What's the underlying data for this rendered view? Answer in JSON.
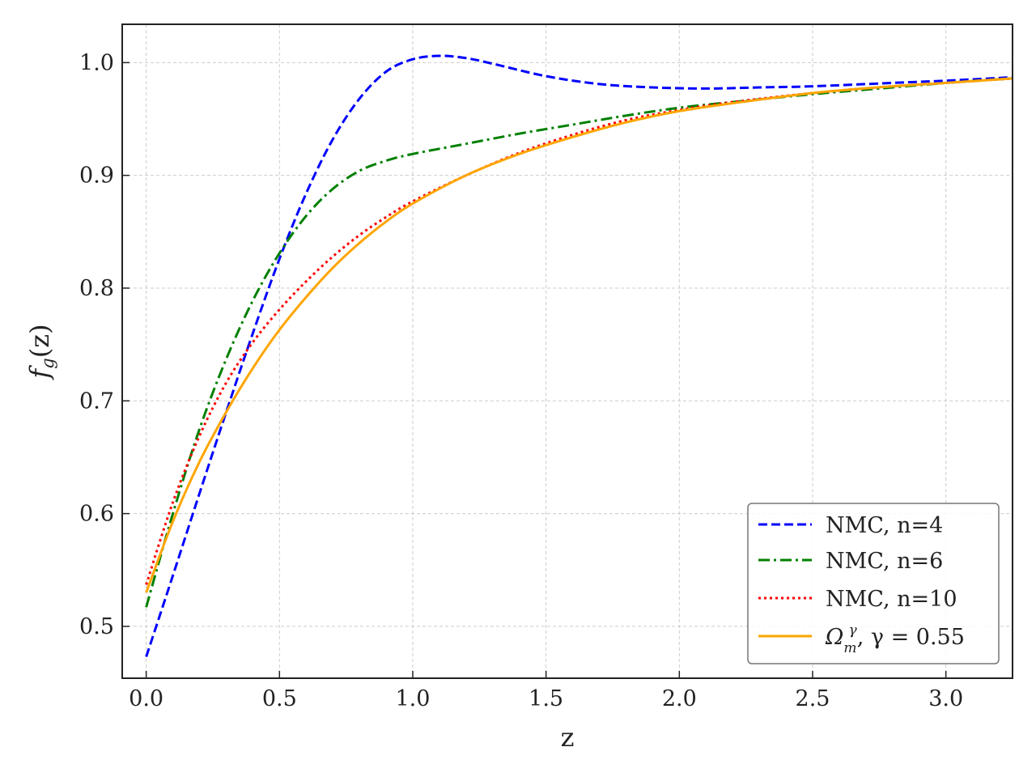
{
  "chart_data": {
    "type": "line",
    "xlabel": "z",
    "ylabel": "f",
    "ylabel_sub": "g",
    "ylabel_tail": "(z)",
    "xlim": [
      -0.09,
      3.25
    ],
    "ylim": [
      0.454,
      1.034
    ],
    "x_ticks": [
      0.0,
      0.5,
      1.0,
      1.5,
      2.0,
      2.5,
      3.0
    ],
    "x_tick_labels": [
      "0.0",
      "0.5",
      "1.0",
      "1.5",
      "2.0",
      "2.5",
      "3.0"
    ],
    "y_ticks": [
      0.5,
      0.6,
      0.7,
      0.8,
      0.9,
      1.0
    ],
    "y_tick_labels": [
      "0.5",
      "0.6",
      "0.7",
      "0.8",
      "0.9",
      "1.0"
    ],
    "grid": true,
    "legend_position": "lower-right",
    "series": [
      {
        "name": "NMC, n=4",
        "color": "#0000ff",
        "style": "dashed",
        "x": [
          0.0,
          0.1,
          0.2,
          0.3,
          0.4,
          0.5,
          0.6,
          0.7,
          0.8,
          0.9,
          1.0,
          1.1,
          1.2,
          1.3,
          1.5,
          1.7,
          1.9,
          2.1,
          2.3,
          2.5,
          2.8,
          3.0,
          3.25
        ],
        "y": [
          0.473,
          0.545,
          0.618,
          0.69,
          0.76,
          0.826,
          0.884,
          0.932,
          0.968,
          0.992,
          1.003,
          1.006,
          1.004,
          0.999,
          0.988,
          0.981,
          0.978,
          0.977,
          0.978,
          0.979,
          0.982,
          0.984,
          0.987
        ]
      },
      {
        "name": "NMC, n=6",
        "color": "#008000",
        "style": "dashdot",
        "x": [
          0.0,
          0.1,
          0.2,
          0.3,
          0.4,
          0.5,
          0.6,
          0.7,
          0.8,
          0.9,
          1.0,
          1.2,
          1.4,
          1.6,
          1.8,
          2.0,
          2.2,
          2.5,
          2.8,
          3.0,
          3.25
        ],
        "y": [
          0.517,
          0.6,
          0.675,
          0.737,
          0.789,
          0.831,
          0.864,
          0.888,
          0.904,
          0.913,
          0.919,
          0.928,
          0.937,
          0.945,
          0.953,
          0.96,
          0.965,
          0.972,
          0.978,
          0.982,
          0.986
        ]
      },
      {
        "name": "NMC, n=10",
        "color": "#ff0000",
        "style": "dotted",
        "x": [
          0.0,
          0.1,
          0.2,
          0.3,
          0.4,
          0.5,
          0.6,
          0.7,
          0.8,
          0.9,
          1.0,
          1.2,
          1.4,
          1.6,
          1.8,
          2.0,
          2.2,
          2.5,
          2.8,
          3.0,
          3.25
        ],
        "y": [
          0.537,
          0.61,
          0.669,
          0.716,
          0.752,
          0.781,
          0.806,
          0.828,
          0.847,
          0.863,
          0.877,
          0.9,
          0.92,
          0.936,
          0.949,
          0.958,
          0.965,
          0.973,
          0.979,
          0.982,
          0.986
        ]
      },
      {
        "name": "Ω_m^γ, γ = 0.55",
        "color": "#ffa500",
        "style": "solid",
        "x": [
          0.0,
          0.1,
          0.2,
          0.3,
          0.4,
          0.5,
          0.6,
          0.7,
          0.8,
          0.9,
          1.0,
          1.2,
          1.4,
          1.6,
          1.8,
          2.0,
          2.2,
          2.5,
          2.8,
          3.0,
          3.25
        ],
        "y": [
          0.53,
          0.593,
          0.646,
          0.69,
          0.729,
          0.763,
          0.792,
          0.818,
          0.84,
          0.859,
          0.875,
          0.9,
          0.919,
          0.934,
          0.947,
          0.957,
          0.964,
          0.973,
          0.979,
          0.982,
          0.986
        ]
      }
    ]
  },
  "legend": {
    "n4": "NMC, n=4",
    "n6": "NMC, n=6",
    "n10": "NMC, n=10",
    "omega_base": "Ω",
    "omega_sub": "m",
    "omega_sup": "γ",
    "omega_tail": ", γ = 0.55"
  }
}
